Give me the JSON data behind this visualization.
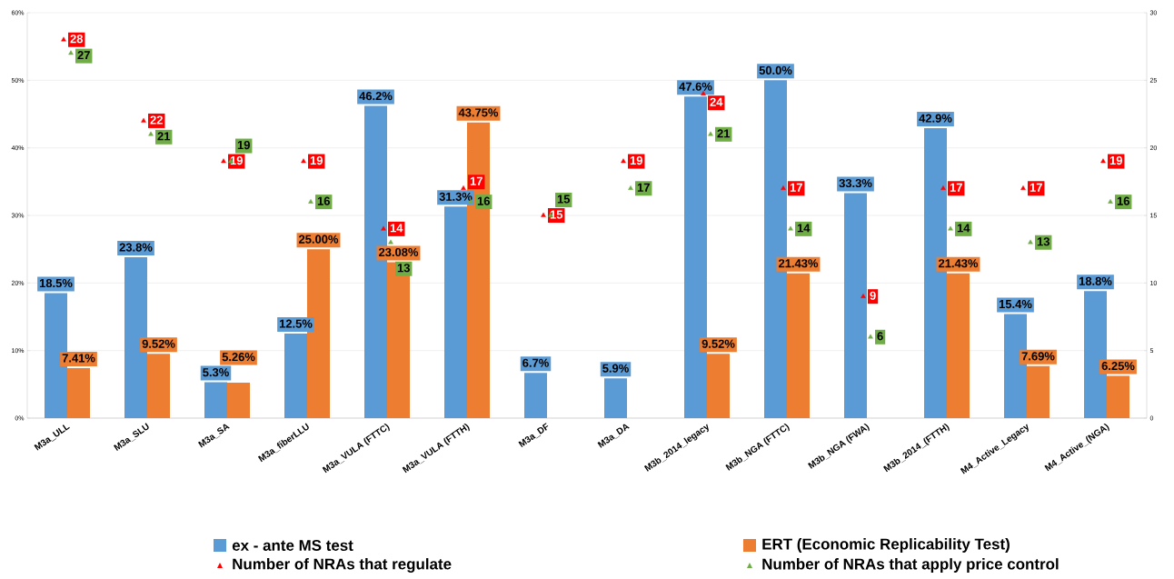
{
  "chart_data": {
    "type": "bar",
    "categories": [
      "M3a_ULL",
      "M3a_SLU",
      "M3a_SA",
      "M3a_fiberLLU",
      "M3a_VULA (FTTC)",
      "M3a_VULA (FTTH)",
      "M3a_DF",
      "M3a_DA",
      "M3b_2014_legacy",
      "M3b_NGA (FTTC)",
      "M3b_NGA (FWA)",
      "M3b_2014_(FTTH)",
      "M4_Active_Legacy",
      "M4_Active_(NGA)"
    ],
    "ylim": [
      0,
      60
    ],
    "yticks": [
      {
        "value": 0,
        "label": "0%"
      },
      {
        "value": 10,
        "label": "10%"
      },
      {
        "value": 20,
        "label": "20%"
      },
      {
        "value": 30,
        "label": "30%"
      },
      {
        "value": 40,
        "label": "40%"
      },
      {
        "value": 50,
        "label": "50%"
      },
      {
        "value": 60,
        "label": "60%"
      }
    ],
    "y2lim": [
      0,
      30
    ],
    "y2ticks": [
      0,
      5,
      10,
      15,
      20,
      25,
      30
    ],
    "grid": "y",
    "legend": "bottom",
    "marker": "triangle",
    "series": [
      {
        "name": "ex - ante MS test",
        "color": "#5b9bd5",
        "values": [
          18.5,
          23.8,
          5.3,
          12.5,
          46.2,
          31.3,
          6.7,
          5.9,
          47.6,
          50.0,
          33.3,
          42.9,
          15.4,
          18.8
        ],
        "value_labels": [
          "18.5%",
          "23.8%",
          "5.3%",
          "12.5%",
          "46.2%",
          "31.3%",
          "6.7%",
          "5.9%",
          "47.6%",
          "50.0%",
          "33.3%",
          "42.9%",
          "15.4%",
          "18.8%"
        ]
      },
      {
        "name": "ERT (Economic Replicability Test)",
        "color": "#ed7d31",
        "values": [
          7.41,
          9.52,
          5.26,
          25.0,
          23.08,
          43.75,
          null,
          null,
          9.52,
          21.43,
          null,
          21.43,
          7.69,
          6.25
        ],
        "value_labels": [
          "7.41%",
          "9.52%",
          "5.26%",
          "25.00%",
          "23.08%",
          "43.75%",
          null,
          null,
          "9.52%",
          "21.43%",
          null,
          "21.43%",
          "7.69%",
          "6.25%"
        ]
      },
      {
        "name": "Number of NRAs that regulate",
        "type": "scatter",
        "axis": "y2",
        "color": "#ff0000",
        "values": [
          28,
          22,
          19,
          19,
          14,
          17,
          15,
          19,
          24,
          17,
          9,
          17,
          17,
          19
        ],
        "value_labels": [
          "28",
          "22",
          "19",
          "19",
          "14",
          "17",
          "15",
          "19",
          "24",
          "17",
          "9",
          "17",
          "17",
          "19"
        ]
      },
      {
        "name": "Number of NRAs that apply price control",
        "type": "scatter",
        "axis": "y2",
        "color": "#70ad47",
        "values": [
          27,
          21,
          19,
          16,
          13,
          16,
          15,
          17,
          21,
          14,
          6,
          14,
          13,
          16
        ],
        "value_labels": [
          "27",
          "21",
          "19",
          "16",
          "13",
          "16",
          "15",
          "17",
          "21",
          "14",
          "6",
          "14",
          "13",
          "16"
        ]
      }
    ]
  }
}
